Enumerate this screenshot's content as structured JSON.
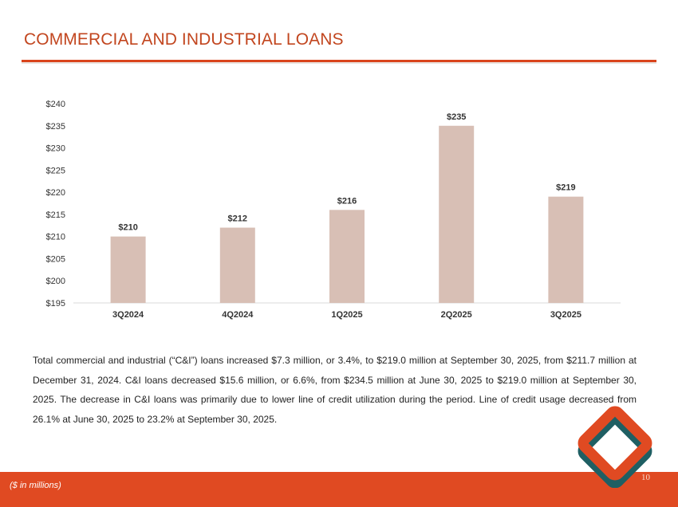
{
  "title": "COMMERCIAL AND INDUSTRIAL LOANS",
  "body_text": "Total commercial and industrial (“C&I”) loans increased $7.3 million, or 3.4%, to $219.0 million at September 30, 2025, from $211.7 million at December 31, 2024. C&I loans decreased $15.6 million, or 6.6%, from $234.5 million at June 30, 2025 to $219.0 million at September 30, 2025. The decrease in C&I loans was primarily due to lower line of credit utilization during the period. Line of credit usage decreased from 26.1% at June 30, 2025 to 23.2% at September 30, 2025.",
  "footer_note": "($ in millions)",
  "page_number": "10",
  "colors": {
    "title": "#c2461f",
    "accent_bar": "#e04a22",
    "bar_fill": "#d8bfb5",
    "logo_orange": "#e04a22",
    "logo_teal": "#1f5f63"
  },
  "chart_data": {
    "type": "bar",
    "categories": [
      "3Q2024",
      "4Q2024",
      "1Q2025",
      "2Q2025",
      "3Q2025"
    ],
    "values": [
      210,
      212,
      216,
      235,
      219
    ],
    "data_labels": [
      "$210",
      "$212",
      "$216",
      "$235",
      "$219"
    ],
    "yticks": [
      195,
      200,
      205,
      210,
      215,
      220,
      225,
      230,
      235,
      240
    ],
    "ytick_labels": [
      "$195",
      "$200",
      "$205",
      "$210",
      "$215",
      "$220",
      "$225",
      "$230",
      "$235",
      "$240"
    ],
    "ylim": [
      195,
      240
    ],
    "title": "",
    "xlabel": "",
    "ylabel": "",
    "grid": false,
    "legend": false
  }
}
